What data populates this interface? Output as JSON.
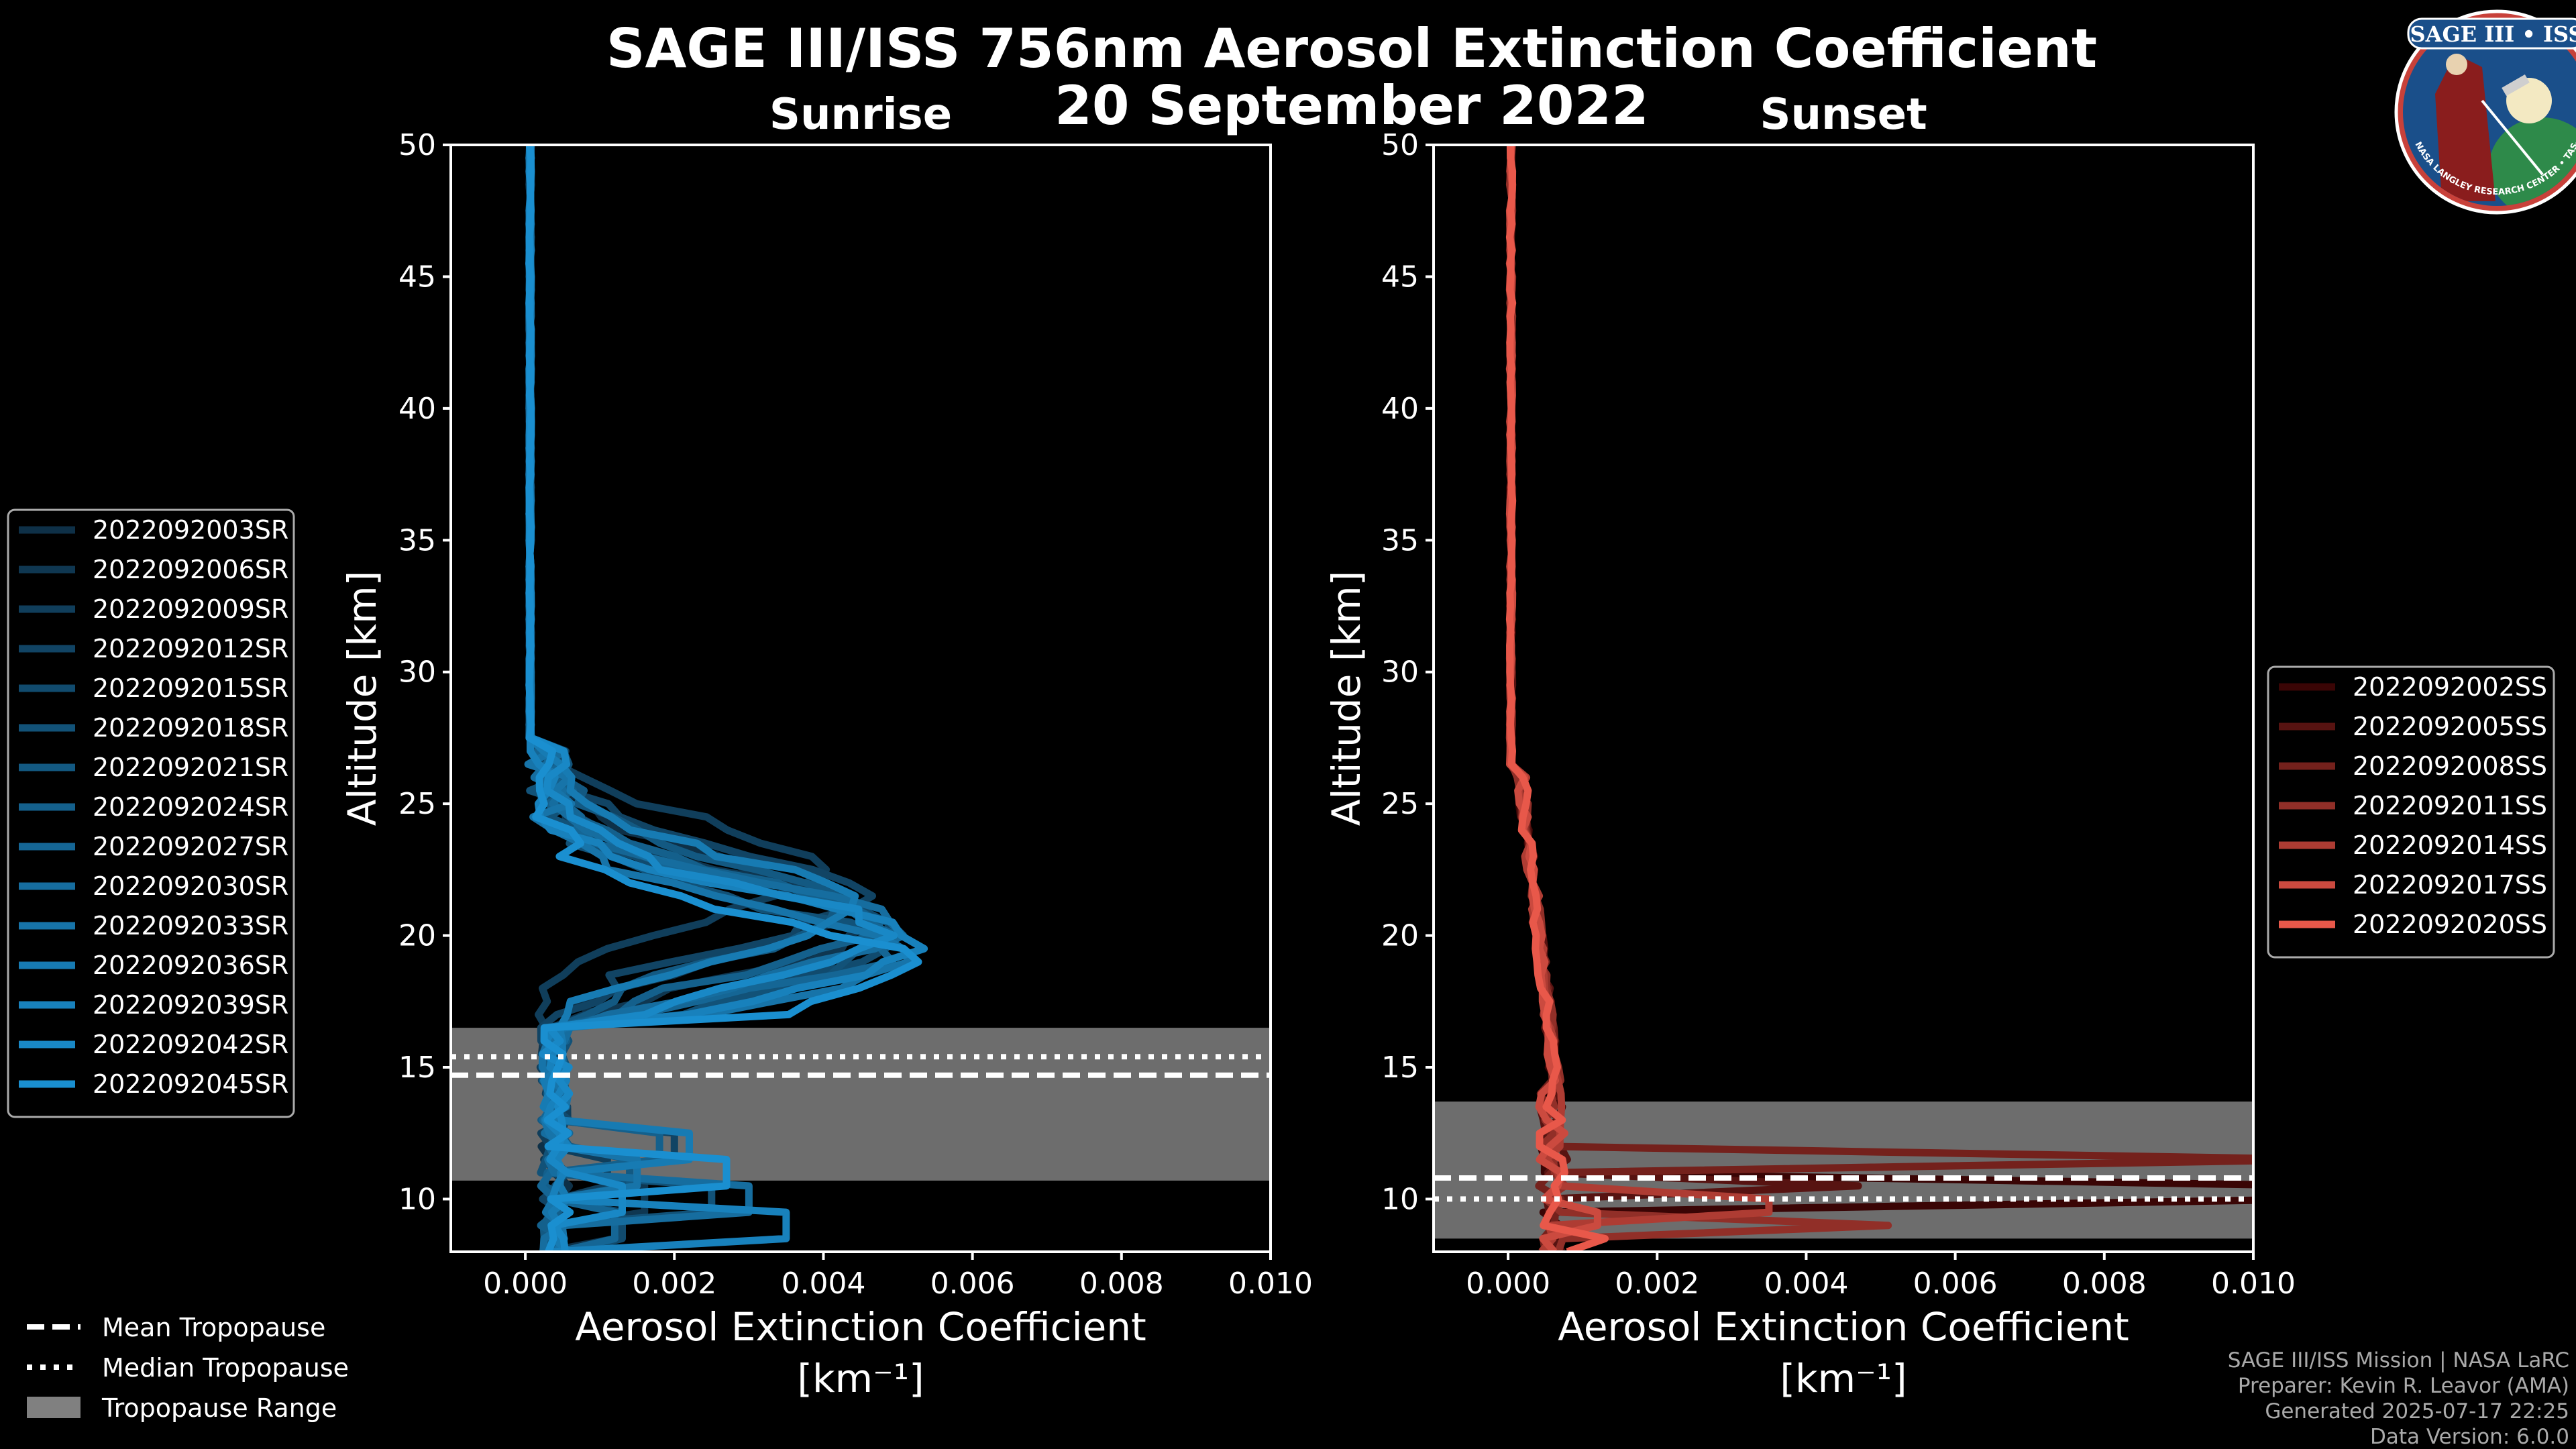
{
  "figure": {
    "title": "SAGE III/ISS 756nm Aerosol Extinction Coefficient",
    "date": "20 September 2022",
    "logo": {
      "name": "SAGE III • ISS",
      "ring_text": "BALL • NASA LANGLEY RESEARCH CENTER • TAS-I • ESA"
    },
    "credits": [
      "SAGE III/ISS Mission | NASA LaRC",
      "Preparer: Kevin R. Leavor (AMA)",
      "Generated 2025-07-17 22:25",
      "Data Version: 6.0.0"
    ],
    "tropopause_legend": [
      {
        "label": "Mean Tropopause",
        "style": "dashed"
      },
      {
        "label": "Median Tropopause",
        "style": "dotted"
      },
      {
        "label": "Tropopause Range",
        "style": "patch",
        "color": "#808080"
      }
    ]
  },
  "chart_data": [
    {
      "type": "line",
      "title": "Sunrise",
      "xlabel": "Aerosol Extinction Coefficient",
      "xlabel_units": "[km⁻¹]",
      "ylabel": "Altitude [km]",
      "xlim": [
        -0.001,
        0.01
      ],
      "ylim": [
        8,
        50
      ],
      "xticks": [
        "0.000",
        "0.002",
        "0.004",
        "0.006",
        "0.008",
        "0.010"
      ],
      "xtick_values": [
        0,
        0.002,
        0.004,
        0.006,
        0.008,
        0.01
      ],
      "yticks": [
        10,
        15,
        20,
        25,
        30,
        35,
        40,
        45,
        50
      ],
      "tropopause": {
        "mean": 14.7,
        "median": 15.4,
        "range": [
          10.7,
          16.5
        ]
      },
      "legend_position": "left",
      "color_start": "#0e3047",
      "color_end": "#1a8fd0",
      "series": [
        {
          "name": "2022092003SR",
          "peak_alt": 21.0,
          "peak_val": 0.0038,
          "lowpeak_val": 0.0012
        },
        {
          "name": "2022092006SR",
          "peak_alt": 20.5,
          "peak_val": 0.0045,
          "lowpeak_val": 0.0016
        },
        {
          "name": "2022092009SR",
          "peak_alt": 22.5,
          "peak_val": 0.0036,
          "lowpeak_val": 0.0011
        },
        {
          "name": "2022092012SR",
          "peak_alt": 21.5,
          "peak_val": 0.0042,
          "lowpeak_val": 0.002
        },
        {
          "name": "2022092015SR",
          "peak_alt": 20.0,
          "peak_val": 0.0047,
          "lowpeak_val": 0.0013
        },
        {
          "name": "2022092018SR",
          "peak_alt": 19.5,
          "peak_val": 0.0044,
          "lowpeak_val": 0.0025
        },
        {
          "name": "2022092021SR",
          "peak_alt": 21.0,
          "peak_val": 0.004,
          "lowpeak_val": 0.0014
        },
        {
          "name": "2022092024SR",
          "peak_alt": 20.5,
          "peak_val": 0.0043,
          "lowpeak_val": 0.0018
        },
        {
          "name": "2022092027SR",
          "peak_alt": 19.8,
          "peak_val": 0.0048,
          "lowpeak_val": 0.0012
        },
        {
          "name": "2022092030SR",
          "peak_alt": 20.2,
          "peak_val": 0.0046,
          "lowpeak_val": 0.003
        },
        {
          "name": "2022092033SR",
          "peak_alt": 19.3,
          "peak_val": 0.0049,
          "lowpeak_val": 0.0015
        },
        {
          "name": "2022092036SR",
          "peak_alt": 21.2,
          "peak_val": 0.0041,
          "lowpeak_val": 0.0022
        },
        {
          "name": "2022092039SR",
          "peak_alt": 19.6,
          "peak_val": 0.005,
          "lowpeak_val": 0.0035
        },
        {
          "name": "2022092042SR",
          "peak_alt": 20.0,
          "peak_val": 0.0045,
          "lowpeak_val": 0.0013
        },
        {
          "name": "2022092045SR",
          "peak_alt": 18.8,
          "peak_val": 0.0049,
          "lowpeak_val": 0.0027
        }
      ]
    },
    {
      "type": "line",
      "title": "Sunset",
      "xlabel": "Aerosol Extinction Coefficient",
      "xlabel_units": "[km⁻¹]",
      "ylabel": "Altitude [km]",
      "xlim": [
        -0.001,
        0.01
      ],
      "ylim": [
        8,
        50
      ],
      "xticks": [
        "0.000",
        "0.002",
        "0.004",
        "0.006",
        "0.008",
        "0.010"
      ],
      "xtick_values": [
        0,
        0.002,
        0.004,
        0.006,
        0.008,
        0.01
      ],
      "yticks": [
        10,
        15,
        20,
        25,
        30,
        35,
        40,
        45,
        50
      ],
      "tropopause": {
        "mean": 10.8,
        "median": 10.0,
        "range": [
          8.5,
          13.7
        ]
      },
      "legend_position": "right",
      "color_start": "#3a0505",
      "color_end": "#e8584a",
      "series": [
        {
          "name": "2022092002SS",
          "spike_alt": 10.2,
          "spike_val": 0.011
        },
        {
          "name": "2022092005SS",
          "spike_alt": 10.6,
          "spike_val": 0.0047
        },
        {
          "name": "2022092008SS",
          "spike_alt": 11.5,
          "spike_val": 0.011
        },
        {
          "name": "2022092011SS",
          "spike_alt": 9.0,
          "spike_val": 0.0051
        },
        {
          "name": "2022092014SS",
          "spike_alt": 9.8,
          "spike_val": 0.0035
        },
        {
          "name": "2022092017SS",
          "spike_alt": 9.2,
          "spike_val": 0.0012
        },
        {
          "name": "2022092020SS",
          "spike_alt": 8.6,
          "spike_val": 0.0013
        }
      ]
    }
  ]
}
